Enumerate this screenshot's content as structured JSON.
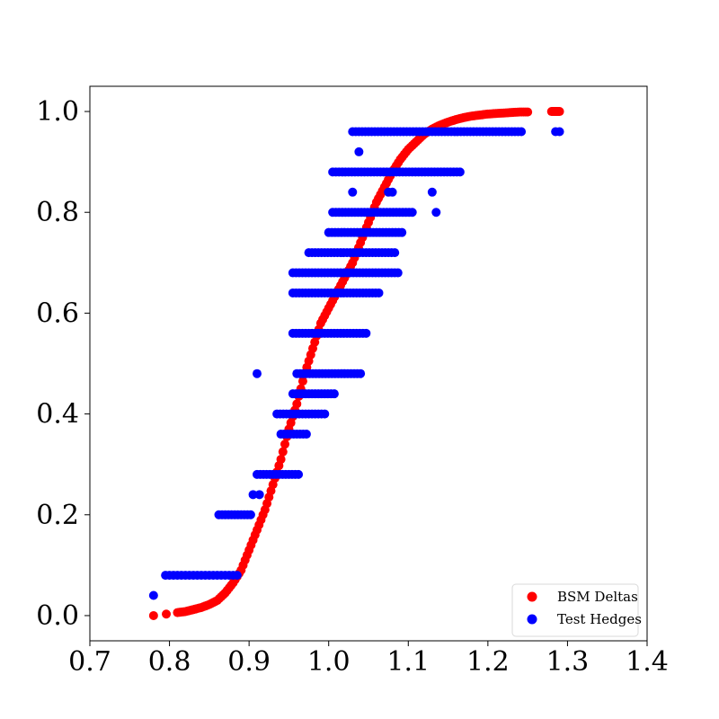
{
  "chart_data": {
    "type": "scatter",
    "title": "",
    "xlabel": "",
    "ylabel": "",
    "xlim": [
      0.7,
      1.4
    ],
    "ylim": [
      -0.05,
      1.05
    ],
    "grid": false,
    "legend_position": "lower-right",
    "x_ticks": [
      "0.7",
      "0.8",
      "0.9",
      "1.0",
      "1.1",
      "1.2",
      "1.3",
      "1.4"
    ],
    "y_ticks": [
      "0.0",
      "0.2",
      "0.4",
      "0.6",
      "0.8",
      "1.0"
    ],
    "series": [
      {
        "name": "BSM Deltas",
        "color": "#ff0000",
        "note": "dense points along an S-shaped curve",
        "points": [
          [
            0.78,
            0.0
          ],
          [
            0.796,
            0.003
          ],
          [
            0.81,
            0.006
          ],
          [
            0.82,
            0.008
          ],
          [
            0.83,
            0.012
          ],
          [
            0.84,
            0.016
          ],
          [
            0.85,
            0.022
          ],
          [
            0.86,
            0.03
          ],
          [
            0.87,
            0.045
          ],
          [
            0.88,
            0.065
          ],
          [
            0.89,
            0.09
          ],
          [
            0.9,
            0.13
          ],
          [
            0.91,
            0.17
          ],
          [
            0.92,
            0.21
          ],
          [
            0.93,
            0.26
          ],
          [
            0.94,
            0.31
          ],
          [
            0.95,
            0.37
          ],
          [
            0.96,
            0.42
          ],
          [
            0.97,
            0.48
          ],
          [
            0.98,
            0.53
          ],
          [
            0.99,
            0.58
          ],
          [
            1.0,
            0.61
          ],
          [
            1.01,
            0.64
          ],
          [
            1.02,
            0.67
          ],
          [
            1.03,
            0.7
          ],
          [
            1.04,
            0.74
          ],
          [
            1.05,
            0.78
          ],
          [
            1.06,
            0.82
          ],
          [
            1.07,
            0.85
          ],
          [
            1.08,
            0.88
          ],
          [
            1.09,
            0.905
          ],
          [
            1.1,
            0.925
          ],
          [
            1.11,
            0.94
          ],
          [
            1.12,
            0.955
          ],
          [
            1.13,
            0.965
          ],
          [
            1.14,
            0.973
          ],
          [
            1.15,
            0.979
          ],
          [
            1.16,
            0.984
          ],
          [
            1.17,
            0.988
          ],
          [
            1.18,
            0.991
          ],
          [
            1.19,
            0.993
          ],
          [
            1.2,
            0.995
          ],
          [
            1.21,
            0.996
          ],
          [
            1.22,
            0.997
          ],
          [
            1.23,
            0.998
          ],
          [
            1.24,
            0.999
          ],
          [
            1.25,
            0.999
          ],
          [
            1.28,
            1.0
          ],
          [
            1.285,
            1.0
          ],
          [
            1.29,
            1.0
          ]
        ]
      },
      {
        "name": "Test Hedges",
        "color": "#0000ff",
        "note": "horizontal clusters at discrete levels",
        "bands": [
          {
            "y": 0.04,
            "x": [
              0.78
            ]
          },
          {
            "y": 0.08,
            "x_range": [
              0.795,
              0.885
            ],
            "step": 0.005
          },
          {
            "y": 0.2,
            "x_range": [
              0.862,
              0.905
            ],
            "step": 0.004
          },
          {
            "y": 0.24,
            "x": [
              0.905,
              0.913
            ]
          },
          {
            "y": 0.28,
            "x_range": [
              0.91,
              0.965
            ],
            "step": 0.004
          },
          {
            "y": 0.36,
            "x_range": [
              0.94,
              0.975
            ],
            "step": 0.004
          },
          {
            "y": 0.4,
            "x_range": [
              0.935,
              0.995
            ],
            "step": 0.004
          },
          {
            "y": 0.44,
            "x_range": [
              0.955,
              1.01
            ],
            "step": 0.004
          },
          {
            "y": 0.48,
            "x": [
              0.91
            ]
          },
          {
            "y": 0.48,
            "x_range": [
              0.96,
              1.04
            ],
            "step": 0.004
          },
          {
            "y": 0.56,
            "x_range": [
              0.955,
              1.05
            ],
            "step": 0.004
          },
          {
            "y": 0.64,
            "x_range": [
              0.955,
              1.065
            ],
            "step": 0.004
          },
          {
            "y": 0.68,
            "x_range": [
              0.955,
              1.09
            ],
            "step": 0.004
          },
          {
            "y": 0.72,
            "x_range": [
              0.975,
              1.085
            ],
            "step": 0.004
          },
          {
            "y": 0.76,
            "x_range": [
              1.0,
              1.095
            ],
            "step": 0.004
          },
          {
            "y": 0.8,
            "x_range": [
              1.005,
              1.105
            ],
            "step": 0.004
          },
          {
            "y": 0.8,
            "x": [
              1.135
            ]
          },
          {
            "y": 0.84,
            "x": [
              1.03,
              1.075,
              1.08,
              1.13
            ]
          },
          {
            "y": 0.88,
            "x_range": [
              1.005,
              1.165
            ],
            "step": 0.004
          },
          {
            "y": 0.92,
            "x": [
              1.038
            ]
          },
          {
            "y": 0.96,
            "x_range": [
              1.03,
              1.245
            ],
            "step": 0.004
          },
          {
            "y": 0.96,
            "x": [
              1.285,
              1.29
            ]
          }
        ]
      }
    ]
  }
}
